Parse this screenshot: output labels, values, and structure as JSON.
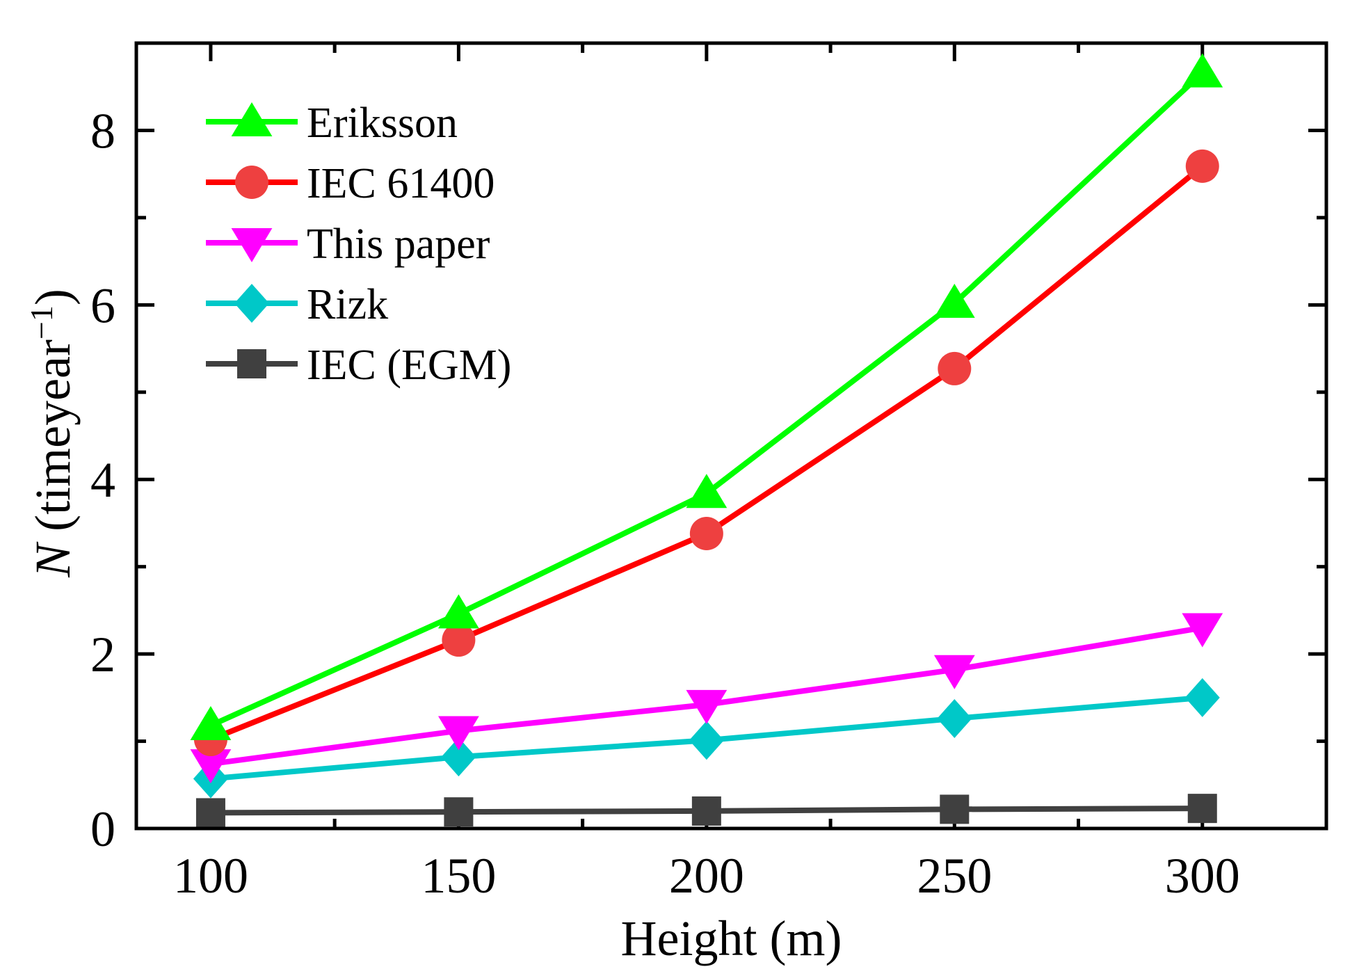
{
  "chart_data": {
    "type": "line",
    "title": "",
    "xlabel": "Height (m)",
    "ylabel_symbol": "N",
    "ylabel_text": " (timeyear",
    "ylabel_sup": "−1",
    "ylabel_close": ")",
    "xlim": [
      85,
      325
    ],
    "ylim": [
      0,
      9
    ],
    "x_ticks": [
      100,
      150,
      200,
      250,
      300
    ],
    "x_tick_labels": [
      "100",
      "150",
      "200",
      "250",
      "300"
    ],
    "y_ticks": [
      0,
      2,
      4,
      6,
      8
    ],
    "y_tick_labels": [
      "0",
      "2",
      "4",
      "6",
      "8"
    ],
    "x": [
      100,
      150,
      200,
      250,
      300
    ],
    "legend_position": "top-left",
    "series": [
      {
        "name": "Eriksson",
        "color": "#00ff00",
        "marker": "triangle-up",
        "values": [
          1.18,
          2.46,
          3.84,
          6.02,
          8.66
        ]
      },
      {
        "name": "IEC 61400",
        "color": "#ff0000",
        "marker_color": "#ee4040",
        "marker": "circle",
        "values": [
          1.02,
          2.16,
          3.38,
          5.27,
          7.59
        ]
      },
      {
        "name": "This paper",
        "color": "#ff00ff",
        "marker": "triangle-down",
        "values": [
          0.74,
          1.12,
          1.42,
          1.82,
          2.3
        ]
      },
      {
        "name": "Rizk",
        "color": "#00c8c8",
        "marker": "diamond",
        "values": [
          0.57,
          0.82,
          1.01,
          1.26,
          1.5
        ]
      },
      {
        "name": "IEC (EGM)",
        "color": "#404040",
        "marker": "square",
        "values": [
          0.18,
          0.19,
          0.2,
          0.22,
          0.23
        ]
      }
    ]
  }
}
